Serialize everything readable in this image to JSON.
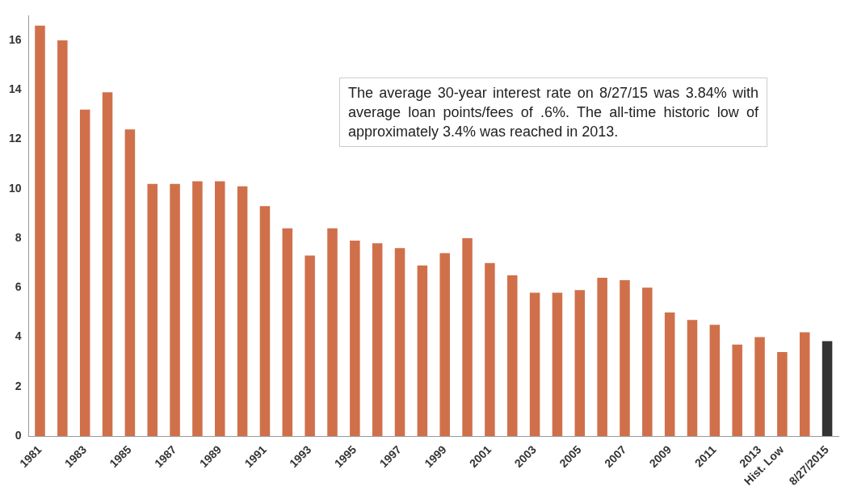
{
  "chart_data": {
    "type": "bar",
    "categories": [
      "1981",
      null,
      "1983",
      null,
      "1985",
      null,
      "1987",
      null,
      "1989",
      null,
      "1991",
      null,
      "1993",
      null,
      "1995",
      null,
      "1997",
      null,
      "1999",
      null,
      "2001",
      null,
      "2003",
      null,
      "2005",
      null,
      "2007",
      null,
      "2009",
      null,
      "2011",
      null,
      "2013",
      "Hist. Low",
      null,
      "8/27/2015"
    ],
    "values": [
      16.6,
      16.0,
      13.2,
      13.9,
      12.4,
      10.2,
      10.2,
      10.3,
      10.3,
      10.1,
      9.3,
      8.4,
      7.3,
      8.4,
      7.9,
      7.8,
      7.6,
      6.9,
      7.4,
      8.0,
      7.0,
      6.5,
      5.8,
      5.8,
      5.9,
      6.4,
      6.3,
      6.0,
      5.0,
      4.7,
      4.5,
      3.7,
      4.0,
      3.4,
      4.2,
      3.84
    ],
    "colors": [
      "#d0704a",
      "#d0704a",
      "#d0704a",
      "#d0704a",
      "#d0704a",
      "#d0704a",
      "#d0704a",
      "#d0704a",
      "#d0704a",
      "#d0704a",
      "#d0704a",
      "#d0704a",
      "#d0704a",
      "#d0704a",
      "#d0704a",
      "#d0704a",
      "#d0704a",
      "#d0704a",
      "#d0704a",
      "#d0704a",
      "#d0704a",
      "#d0704a",
      "#d0704a",
      "#d0704a",
      "#d0704a",
      "#d0704a",
      "#d0704a",
      "#d0704a",
      "#d0704a",
      "#d0704a",
      "#d0704a",
      "#d0704a",
      "#d0704a",
      "#d0704a",
      "#d0704a",
      "#333333"
    ],
    "ylim": [
      0,
      17
    ],
    "yticks": [
      0,
      2,
      4,
      6,
      8,
      10,
      12,
      14,
      16
    ],
    "grid": false,
    "legend": false,
    "annotations": [
      "The average 30-year interest rate on 8/27/15 was 3.84% with average loan points/fees of .6%. The all-time historic low of approximately 3.4% was reached in 2013."
    ]
  }
}
